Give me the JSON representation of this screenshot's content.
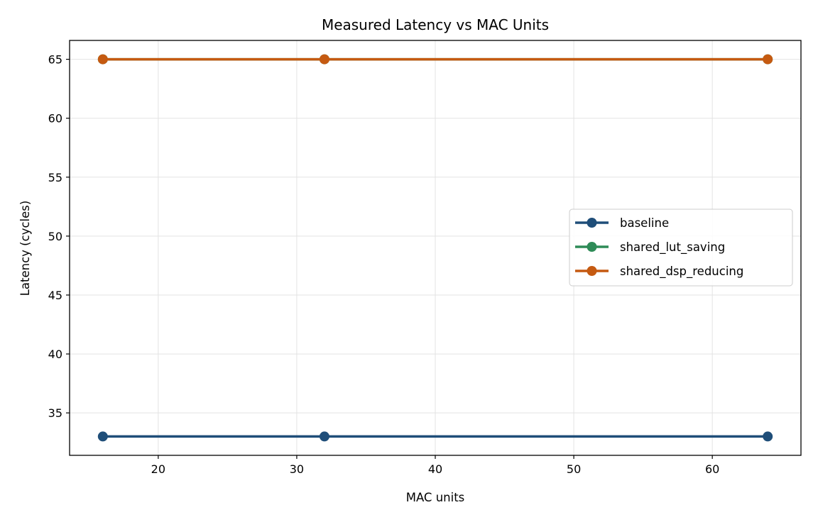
{
  "chart_data": {
    "type": "line",
    "title": "Measured Latency vs MAC Units",
    "xlabel": "MAC units",
    "ylabel": "Latency (cycles)",
    "x": [
      16,
      32,
      64
    ],
    "xticks": [
      20,
      30,
      40,
      50,
      60
    ],
    "yticks": [
      35,
      40,
      45,
      50,
      55,
      60,
      65
    ],
    "xlim": [
      13.6,
      66.4
    ],
    "ylim": [
      31.4,
      66.6
    ],
    "grid": true,
    "legend_position": "center right",
    "series": [
      {
        "name": "baseline",
        "color": "#1f4e79",
        "values": [
          33,
          33,
          33
        ]
      },
      {
        "name": "shared_lut_saving",
        "color": "#2e8b57",
        "values": [
          65,
          65,
          65
        ]
      },
      {
        "name": "shared_dsp_reducing",
        "color": "#c55a11",
        "values": [
          65,
          65,
          65
        ]
      }
    ]
  }
}
